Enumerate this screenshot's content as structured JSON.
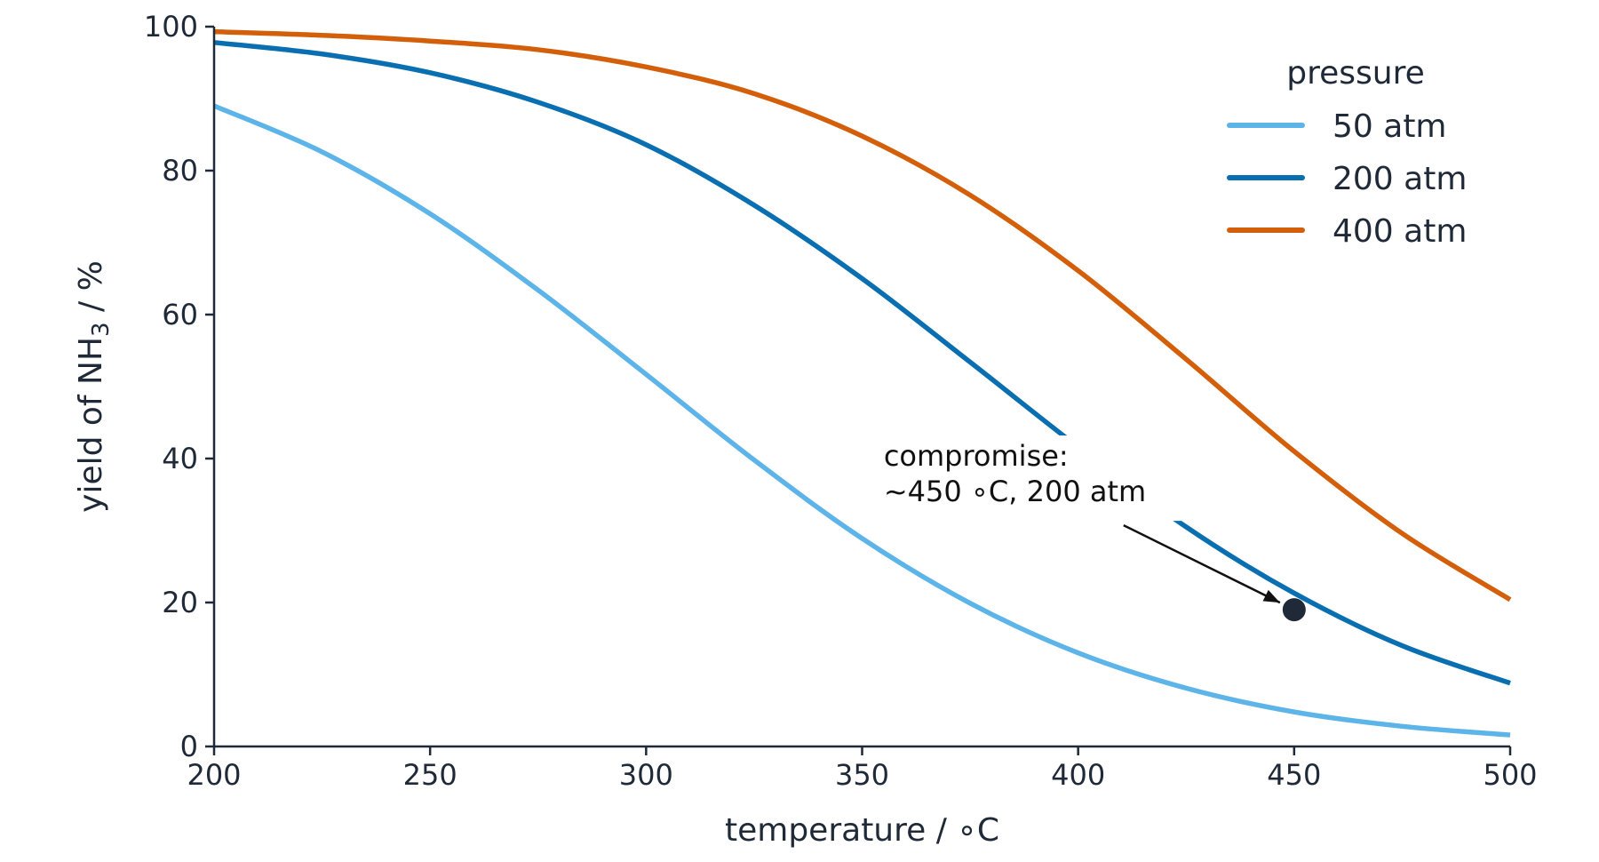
{
  "chart_data": {
    "type": "line",
    "xlabel": "temperature / ∘C",
    "ylabel": {
      "prefix": "yield of NH",
      "subscript": "3",
      "suffix": " / %"
    },
    "xlim": [
      200,
      500
    ],
    "ylim": [
      0,
      100
    ],
    "xticks": [
      200,
      250,
      300,
      350,
      400,
      450,
      500
    ],
    "yticks": [
      0,
      20,
      40,
      60,
      80,
      100
    ],
    "grid": false,
    "legend": {
      "title": "pressure",
      "position": "top-right"
    },
    "x": [
      200,
      225,
      250,
      275,
      300,
      325,
      350,
      375,
      400,
      425,
      450,
      475,
      500
    ],
    "series": [
      {
        "name": "50 atm",
        "color": "#5db4e8",
        "values": [
          89,
          82.6,
          74,
          63.4,
          51.7,
          39.8,
          28.9,
          19.9,
          13.0,
          8.1,
          4.8,
          2.8,
          1.6
        ]
      },
      {
        "name": "200 atm",
        "color": "#0a6fb0",
        "values": [
          97.8,
          96.2,
          93.6,
          89.5,
          83.6,
          75.2,
          65.0,
          53.4,
          41.6,
          30.5,
          21.3,
          14.0,
          8.8
        ]
      },
      {
        "name": "400 atm",
        "color": "#d35f0a",
        "values": [
          99.3,
          98.8,
          98.0,
          96.8,
          94.4,
          90.7,
          84.8,
          76.6,
          66.1,
          53.8,
          41.0,
          29.6,
          20.4
        ]
      }
    ],
    "annotation": {
      "lines": [
        "compromise:",
        "~450 ∘C, 200 atm"
      ],
      "point": {
        "x": 450,
        "y": 19
      },
      "text_anchor": {
        "x": 355,
        "y": 39
      },
      "marker_color": "#1f2937"
    },
    "axis_color": "#1f2937"
  }
}
